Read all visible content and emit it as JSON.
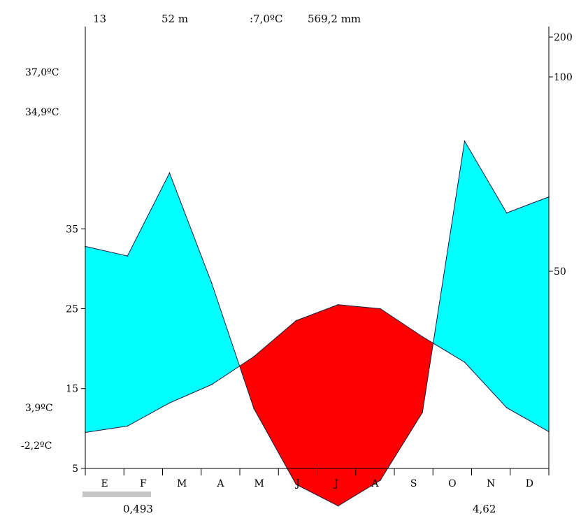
{
  "header": {
    "years": "13",
    "altitude": "52 m",
    "mean_temp": ":7,0ºC",
    "annual_precip": "569,2 mm"
  },
  "left_annotations": {
    "abs_max": "37,0ºC",
    "mean_max_warmest": "34,9ºC",
    "mean_min_coldest": "3,9ºC",
    "abs_min": "-2,2ºC"
  },
  "bottom_annotations": {
    "left_value": "0,493",
    "right_value": "4,62"
  },
  "colors": {
    "humid": "#00ffff",
    "arid": "#ff0000",
    "outline": "#1a1a3a"
  },
  "chart_data": {
    "type": "area",
    "title": "",
    "categories": [
      "E",
      "F",
      "M",
      "A",
      "M",
      "J",
      "J",
      "A",
      "S",
      "O",
      "N",
      "D"
    ],
    "left_axis": {
      "ticks": [
        5,
        15,
        25,
        35
      ],
      "range": [
        0,
        40
      ]
    },
    "right_axis": {
      "ticks": [
        50,
        100,
        200
      ]
    },
    "series": [
      {
        "values": [
          9.5,
          10.3,
          13.2,
          15.5,
          19.0,
          23.5,
          25.5,
          25.0,
          21.5,
          18.3,
          12.6,
          9.6
        ]
      },
      {
        "values": [
          32.8,
          31.6,
          42.0,
          28.2,
          12.5,
          3.0,
          0.3,
          3.5,
          12.0,
          46.0,
          37.0,
          39.0
        ]
      }
    ],
    "legend": "none",
    "grid": false
  }
}
